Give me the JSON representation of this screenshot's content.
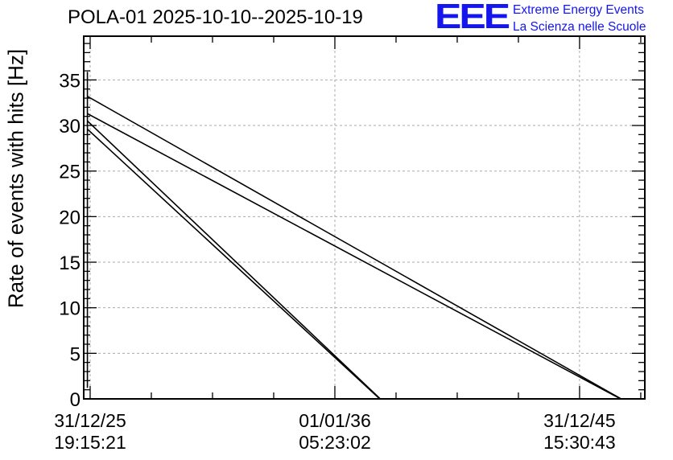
{
  "header": {
    "title": "POLA-01 2025-10-10--2025-10-19",
    "logo_mark": "EEE",
    "logo_line1": "Extreme Energy Events",
    "logo_line2": "La Scienza nelle Scuole",
    "logo_color": "#1515ee"
  },
  "chart_data": {
    "type": "line",
    "title": "POLA-01 2025-10-10--2025-10-19",
    "xlabel": "",
    "ylabel": "Rate of events with hits [Hz]",
    "xlim": [
      "2025-09-26",
      "2048-09-01"
    ],
    "ylim": [
      0,
      39.8
    ],
    "grid": true,
    "grid_style": "dashed",
    "x_ticks": [
      {
        "date": "2025-12-31",
        "line1": "31/12/25",
        "line2": "19:15:21"
      },
      {
        "date": "2036-01-01",
        "line1": "01/01/36",
        "line2": "05:23:02"
      },
      {
        "date": "2045-12-31",
        "line1": "31/12/45",
        "line2": "15:30:43"
      }
    ],
    "y_ticks": [
      0,
      5,
      10,
      15,
      20,
      25,
      30,
      35
    ],
    "line_color": "#000000",
    "series": [
      {
        "x": [
          "2025-11-20",
          "2025-11-20",
          "2025-11-20",
          "2025-11-20"
        ],
        "y": [
          1.2,
          35.9,
          8.6,
          35.0
        ]
      },
      {
        "x": [
          "2025-11-20",
          "2047-09-13"
        ],
        "y": [
          33.2,
          0
        ]
      },
      {
        "x": [
          "2025-11-20",
          "2047-09-05"
        ],
        "y": [
          31.3,
          0
        ]
      },
      {
        "x": [
          "2025-11-20",
          "2037-11-09"
        ],
        "y": [
          30.5,
          0
        ]
      },
      {
        "x": [
          "2025-11-20",
          "2037-11-01"
        ],
        "y": [
          29.6,
          0
        ]
      }
    ]
  }
}
